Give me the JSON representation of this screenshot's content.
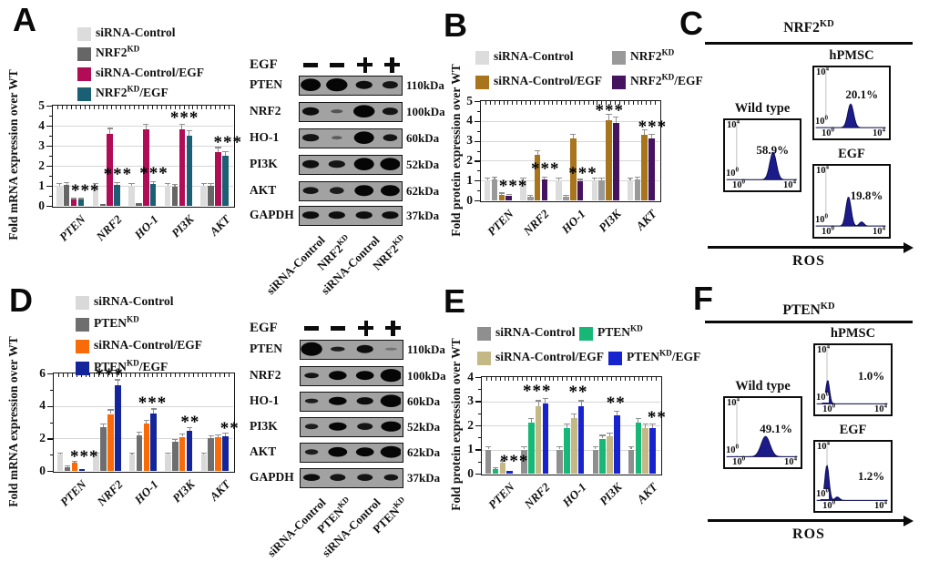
{
  "panels": {
    "A": {
      "letter": "A"
    },
    "B": {
      "letter": "B"
    },
    "C": {
      "letter": "C"
    },
    "D": {
      "letter": "D"
    },
    "E": {
      "letter": "E"
    },
    "F": {
      "letter": "F"
    }
  },
  "chart_data": [
    {
      "id": "A",
      "type": "bar",
      "panel": "A",
      "ylabel": "Fold mRNA expression over WT",
      "ylim": [
        0,
        5
      ],
      "yticks": [
        0,
        1,
        2,
        3,
        4,
        5
      ],
      "grid": true,
      "legend_position": "above-left",
      "categories": [
        "PTEN",
        "NRF2",
        "HO-1",
        "PI3K",
        "AKT"
      ],
      "series": [
        {
          "name": "siRNA-Control",
          "color": "#dcdcdc",
          "values": [
            1.0,
            1.0,
            1.0,
            1.0,
            1.0
          ]
        },
        {
          "name": "NRF2^{KD}",
          "color": "#666666",
          "values": [
            1.05,
            0.1,
            0.12,
            0.97,
            1.0
          ]
        },
        {
          "name": "siRNA-Control/EGF",
          "color": "#b00d56",
          "values": [
            0.3,
            3.6,
            3.8,
            3.8,
            2.7
          ]
        },
        {
          "name": "NRF2^{KD}/EGF",
          "color": "#1b5f74",
          "values": [
            0.3,
            1.05,
            1.1,
            3.5,
            2.5
          ]
        }
      ],
      "significance": [
        {
          "category": "PTEN",
          "text": "***",
          "y": 0.72,
          "dx": 16
        },
        {
          "category": "NRF2",
          "text": "***",
          "y": 1.55,
          "dx": 12
        },
        {
          "category": "HO-1",
          "text": "***",
          "y": 1.6,
          "dx": 12
        },
        {
          "category": "PI3K",
          "text": "***",
          "y": 4.35,
          "dx": 6
        },
        {
          "category": "AKT",
          "text": "***",
          "y": 3.15,
          "dx": 14
        }
      ]
    },
    {
      "id": "B",
      "type": "bar",
      "panel": "B",
      "ylabel": "Fold protein expression over WT",
      "ylim": [
        0,
        5
      ],
      "yticks": [
        0,
        1,
        2,
        3,
        4,
        5
      ],
      "grid": true,
      "legend_position": "above",
      "categories": [
        "PTEN",
        "NRF2",
        "HO-1",
        "PI3K",
        "AKT"
      ],
      "series": [
        {
          "name": "siRNA-Control",
          "color": "#dcdcdc",
          "values": [
            1.0,
            1.0,
            1.0,
            1.0,
            1.0
          ]
        },
        {
          "name": "NRF2^{KD}",
          "color": "#999999",
          "values": [
            1.05,
            0.18,
            0.2,
            1.0,
            1.05
          ]
        },
        {
          "name": "siRNA-Control/EGF",
          "color": "#a8741c",
          "values": [
            0.3,
            2.3,
            3.1,
            4.05,
            3.3
          ]
        },
        {
          "name": "NRF2^{KD}/EGF",
          "color": "#46135f",
          "values": [
            0.25,
            1.05,
            0.95,
            3.9,
            3.1
          ]
        }
      ],
      "significance": [
        {
          "category": "PTEN",
          "text": "***",
          "y": 0.7,
          "dx": 16
        },
        {
          "category": "NRF2",
          "text": "***",
          "y": 1.55,
          "dx": 12
        },
        {
          "category": "HO-1",
          "text": "***",
          "y": 1.35,
          "dx": 14
        },
        {
          "category": "PI3K",
          "text": "***",
          "y": 4.5,
          "dx": 4
        },
        {
          "category": "AKT",
          "text": "***",
          "y": 3.65,
          "dx": 12
        }
      ]
    },
    {
      "id": "D",
      "type": "bar",
      "panel": "D",
      "ylabel": "Fold mRNA expression over WT",
      "ylim": [
        0,
        6
      ],
      "yticks": [
        0,
        2,
        4,
        6
      ],
      "grid": true,
      "legend_position": "above-left",
      "categories": [
        "PTEN",
        "NRF2",
        "HO-1",
        "PI3K",
        "AKT"
      ],
      "series": [
        {
          "name": "siRNA-Control",
          "color": "#d9d9d9",
          "values": [
            1.0,
            1.0,
            1.0,
            1.0,
            1.0
          ]
        },
        {
          "name": "PTEN^{KD}",
          "color": "#6e6e6e",
          "values": [
            0.25,
            2.7,
            2.2,
            1.8,
            2.0
          ]
        },
        {
          "name": "siRNA-Control/EGF",
          "color": "#f96a09",
          "values": [
            0.5,
            3.5,
            2.9,
            2.1,
            2.05
          ]
        },
        {
          "name": "PTEN^{KD}/EGF",
          "color": "#14259c",
          "values": [
            0.12,
            5.25,
            3.55,
            2.45,
            2.15
          ]
        }
      ],
      "significance": [
        {
          "category": "PTEN",
          "text": "***",
          "y": 0.85,
          "dx": 14
        },
        {
          "category": "NRF2",
          "text": "***",
          "y": 5.9,
          "dx": 2
        },
        {
          "category": "HO-1",
          "text": "***",
          "y": 4.15,
          "dx": 10
        },
        {
          "category": "PI3K",
          "text": "**",
          "y": 2.95,
          "dx": 12
        },
        {
          "category": "AKT",
          "text": "**",
          "y": 2.6,
          "dx": 16
        }
      ]
    },
    {
      "id": "E",
      "type": "bar",
      "panel": "E",
      "ylabel": "Fold protein expression over WT",
      "ylim": [
        0,
        4
      ],
      "yticks": [
        0,
        1,
        2,
        3,
        4
      ],
      "grid": true,
      "legend_position": "above",
      "categories": [
        "PTEN",
        "NRF2",
        "HO-1",
        "PI3K",
        "AKT"
      ],
      "series": [
        {
          "name": "siRNA-Control",
          "color": "#8f8f8f",
          "values": [
            1.0,
            1.0,
            1.0,
            1.0,
            1.0
          ]
        },
        {
          "name": "PTEN^{KD}",
          "color": "#17b877",
          "values": [
            0.2,
            2.1,
            1.9,
            1.45,
            2.1
          ]
        },
        {
          "name": "siRNA-Control/EGF",
          "color": "#c4b884",
          "values": [
            0.45,
            2.8,
            2.3,
            1.55,
            1.9
          ]
        },
        {
          "name": "PTEN^{KD}/EGF",
          "color": "#1723cf",
          "values": [
            0.1,
            2.9,
            2.8,
            2.4,
            1.9
          ]
        }
      ],
      "significance": [
        {
          "category": "PTEN",
          "text": "***",
          "y": 0.5,
          "dx": 16
        },
        {
          "category": "NRF2",
          "text": "***",
          "y": 3.4,
          "dx": 2
        },
        {
          "category": "HO-1",
          "text": "**",
          "y": 3.35,
          "dx": 8
        },
        {
          "category": "PI3K",
          "text": "**",
          "y": 2.9,
          "dx": 10
        },
        {
          "category": "AKT",
          "text": "**",
          "y": 2.3,
          "dx": 16
        }
      ]
    }
  ],
  "blots": [
    {
      "id": "blot-A",
      "panel": "A",
      "egf_label": "EGF",
      "egf_signs": [
        "-",
        "-",
        "+",
        "+"
      ],
      "lane_labels": [
        "siRNA-Control",
        "NRF2^{KD}",
        "siRNA-Control",
        "NRF2^{KD}"
      ],
      "rows": [
        {
          "protein": "PTEN",
          "kda": "110kDa",
          "bands": [
            [
              0.85,
              0.9,
              1
            ],
            [
              0.9,
              0.95,
              1
            ],
            [
              0.7,
              0.6,
              0.95
            ],
            [
              0.65,
              0.55,
              0.9
            ]
          ]
        },
        {
          "protein": "NRF2",
          "kda": "100kDa",
          "bands": [
            [
              0.7,
              0.6,
              0.95
            ],
            [
              0.5,
              0.28,
              0.5
            ],
            [
              0.9,
              0.9,
              1
            ],
            [
              0.65,
              0.55,
              0.9
            ]
          ]
        },
        {
          "protein": "HO-1",
          "kda": "60kDa",
          "bands": [
            [
              0.7,
              0.55,
              0.9
            ],
            [
              0.45,
              0.25,
              0.45
            ],
            [
              0.85,
              0.9,
              1
            ],
            [
              0.6,
              0.5,
              0.9
            ]
          ]
        },
        {
          "protein": "PI3K",
          "kda": "52kDa",
          "bands": [
            [
              0.7,
              0.6,
              0.95
            ],
            [
              0.7,
              0.55,
              0.9
            ],
            [
              0.85,
              0.9,
              1
            ],
            [
              0.85,
              0.9,
              1
            ]
          ]
        },
        {
          "protein": "AKT",
          "kda": "62kDa",
          "bands": [
            [
              0.65,
              0.5,
              0.9
            ],
            [
              0.6,
              0.5,
              0.85
            ],
            [
              0.8,
              0.8,
              1
            ],
            [
              0.8,
              0.8,
              1
            ]
          ]
        },
        {
          "protein": "GAPDH",
          "kda": "37kDa",
          "bands": [
            [
              0.7,
              0.55,
              0.95
            ],
            [
              0.7,
              0.55,
              0.95
            ],
            [
              0.7,
              0.55,
              0.95
            ],
            [
              0.7,
              0.55,
              0.95
            ]
          ]
        }
      ]
    },
    {
      "id": "blot-D",
      "panel": "D",
      "egf_label": "EGF",
      "egf_signs": [
        "-",
        "-",
        "+",
        "+"
      ],
      "lane_labels": [
        "siRNA-Control",
        "PTEN^{KD}",
        "siRNA-Control",
        "PTEN^{KD}"
      ],
      "rows": [
        {
          "protein": "PTEN",
          "kda": "110kDa",
          "bands": [
            [
              0.9,
              1,
              1
            ],
            [
              0.6,
              0.35,
              0.85
            ],
            [
              0.7,
              0.6,
              0.95
            ],
            [
              0.5,
              0.2,
              0.3
            ]
          ]
        },
        {
          "protein": "NRF2",
          "kda": "100kDa",
          "bands": [
            [
              0.6,
              0.4,
              0.9
            ],
            [
              0.75,
              0.65,
              1
            ],
            [
              0.75,
              0.65,
              1
            ],
            [
              0.9,
              0.95,
              1
            ]
          ]
        },
        {
          "protein": "HO-1",
          "kda": "60kDa",
          "bands": [
            [
              0.55,
              0.35,
              0.85
            ],
            [
              0.75,
              0.6,
              1
            ],
            [
              0.7,
              0.55,
              0.95
            ],
            [
              0.9,
              0.9,
              1
            ]
          ]
        },
        {
          "protein": "PI3K",
          "kda": "52kDa",
          "bands": [
            [
              0.55,
              0.4,
              0.85
            ],
            [
              0.75,
              0.6,
              1
            ],
            [
              0.65,
              0.5,
              0.9
            ],
            [
              0.85,
              0.75,
              1
            ]
          ]
        },
        {
          "protein": "AKT",
          "kda": "62kDa",
          "bands": [
            [
              0.55,
              0.4,
              0.85
            ],
            [
              0.8,
              0.7,
              1
            ],
            [
              0.75,
              0.65,
              1
            ],
            [
              0.9,
              0.85,
              1
            ]
          ]
        },
        {
          "protein": "GAPDH",
          "kda": "37kDa",
          "bands": [
            [
              0.7,
              0.5,
              0.95
            ],
            [
              0.65,
              0.5,
              0.9
            ],
            [
              0.65,
              0.5,
              0.9
            ],
            [
              0.6,
              0.45,
              0.9
            ]
          ]
        }
      ]
    }
  ],
  "flow_data": [
    {
      "id": "flow-C",
      "panel": "C",
      "header": "NRF2^{KD}",
      "xlabel": "ROS",
      "axis": {
        "ytop": "10^{4}",
        "ybottom": "10^{0}",
        "xleft": "10^{0}",
        "xright": "10^{4}"
      },
      "plots": [
        {
          "title": "Wild type",
          "pct": "58.9%",
          "peak_center": 0.66,
          "peak_sigma": 0.045,
          "peak_height": 0.4,
          "pct_x": 0.4,
          "pct_y": 0.31
        },
        {
          "title": "hPMSC",
          "pct": "20.1%",
          "peak_center": 0.5,
          "peak_sigma": 0.04,
          "peak_height": 0.34,
          "pct_x": 0.4,
          "pct_y": 0.27
        },
        {
          "title": "EGF",
          "pct": "19.8%",
          "peak_center": 0.47,
          "peak_sigma": 0.035,
          "peak_height": 0.42,
          "bump_center": 0.65,
          "bump_height": 0.06,
          "pct_x": 0.46,
          "pct_y": 0.31
        }
      ]
    },
    {
      "id": "flow-F",
      "panel": "F",
      "header": "PTEN^{KD}",
      "xlabel": "ROS",
      "axis": {
        "ytop": "10^{4}",
        "ybottom": "10^{0}",
        "xleft": "10^{0}",
        "xright": "10^{4}"
      },
      "plots": [
        {
          "title": "Wild type",
          "pct": "49.1%",
          "peak_center": 0.55,
          "peak_sigma": 0.06,
          "peak_height": 0.3,
          "pct_x": 0.44,
          "pct_y": 0.32
        },
        {
          "title": "hPMSC",
          "pct": "1.0%",
          "peak_center": 0.17,
          "peak_sigma": 0.025,
          "peak_height": 0.35,
          "pct_x": 0.54,
          "pct_y": 0.33
        },
        {
          "title": "EGF",
          "pct": "1.2%",
          "peak_center": 0.16,
          "peak_sigma": 0.028,
          "peak_height": 0.52,
          "bump_center": 0.3,
          "bump_height": 0.05,
          "pct_x": 0.54,
          "pct_y": 0.38
        }
      ]
    }
  ]
}
